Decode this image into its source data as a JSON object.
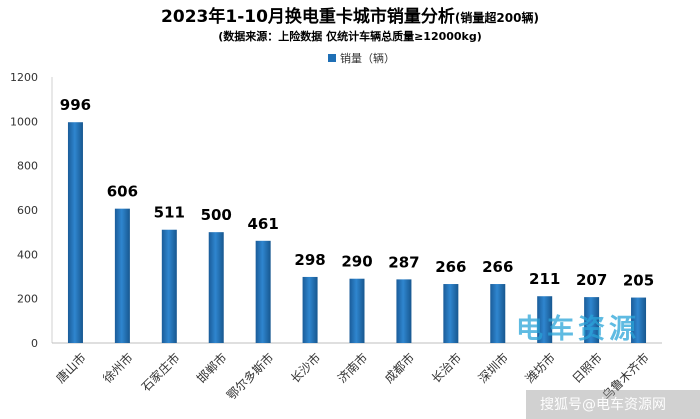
{
  "chart_data": {
    "type": "bar",
    "title": "2023年1-10月换电重卡城市销量分析",
    "title_note": "(销量超200辆)",
    "subtitle": "(数据来源：上险数据 仅统计车辆总质量≥12000kg)",
    "categories": [
      "唐山市",
      "徐州市",
      "石家庄市",
      "邯郸市",
      "鄂尔多斯市",
      "长沙市",
      "济南市",
      "成都市",
      "长治市",
      "深圳市",
      "潍坊市",
      "日照市",
      "乌鲁木齐市"
    ],
    "series": [
      {
        "name": "销量（辆）",
        "values": [
          996,
          606,
          511,
          500,
          461,
          298,
          290,
          287,
          266,
          266,
          211,
          207,
          205
        ]
      }
    ],
    "ylim": [
      0,
      1200
    ],
    "yticks": [
      0,
      200,
      400,
      600,
      800,
      1000,
      1200
    ],
    "grid": false,
    "legend_position": "top",
    "color": "#1f6fb5"
  },
  "watermarks": {
    "logo": "电车资源",
    "footer": "搜狐号@电车资源网"
  }
}
